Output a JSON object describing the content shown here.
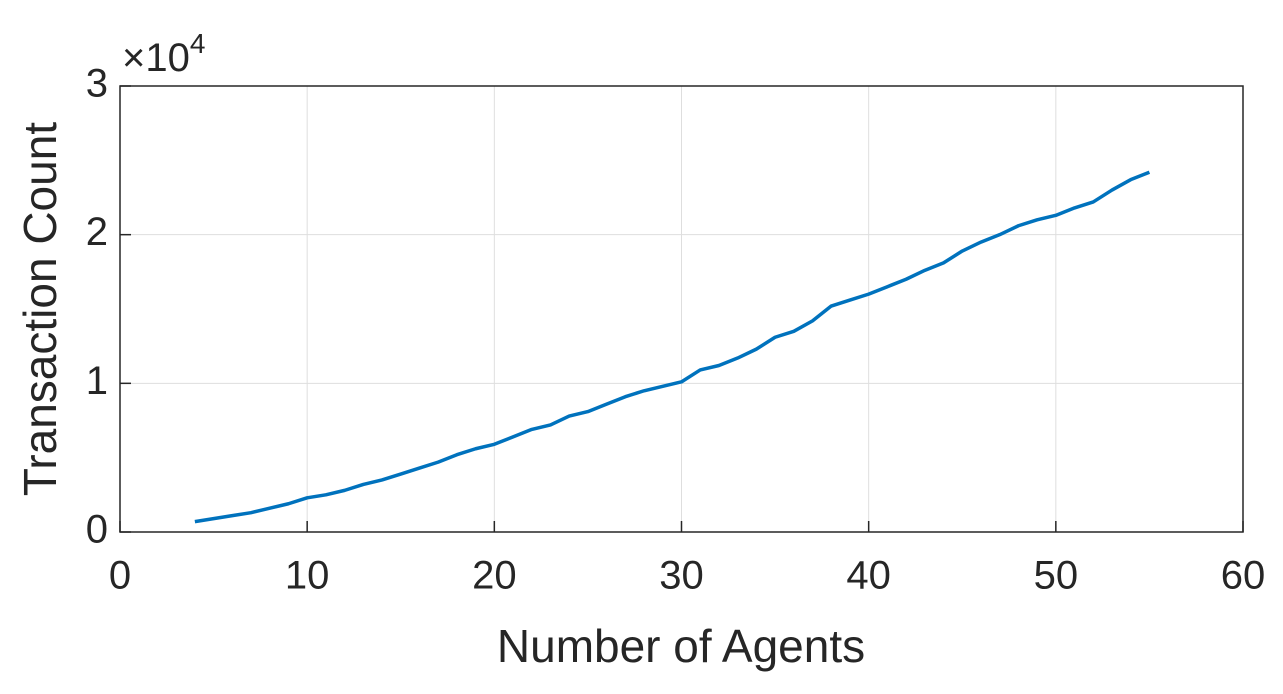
{
  "chart_data": {
    "type": "line",
    "x_label": "Number of Agents",
    "y_label": "Transaction Count",
    "y_scale_label": {
      "base": "×10",
      "exponent": "4"
    },
    "x": [
      4,
      5,
      6,
      7,
      8,
      9,
      10,
      11,
      12,
      13,
      14,
      15,
      16,
      17,
      18,
      19,
      20,
      21,
      22,
      23,
      24,
      25,
      26,
      27,
      28,
      29,
      30,
      31,
      32,
      33,
      34,
      35,
      36,
      37,
      38,
      39,
      40,
      41,
      42,
      43,
      44,
      45,
      46,
      47,
      48,
      49,
      50,
      51,
      52,
      53,
      54,
      55
    ],
    "series": [
      {
        "color": "#0072bd",
        "values": [
          0.07,
          0.09,
          0.11,
          0.13,
          0.16,
          0.19,
          0.23,
          0.25,
          0.28,
          0.32,
          0.35,
          0.39,
          0.43,
          0.47,
          0.52,
          0.56,
          0.59,
          0.64,
          0.69,
          0.72,
          0.78,
          0.81,
          0.86,
          0.91,
          0.95,
          0.98,
          1.01,
          1.09,
          1.12,
          1.17,
          1.23,
          1.31,
          1.35,
          1.42,
          1.52,
          1.56,
          1.6,
          1.65,
          1.7,
          1.76,
          1.81,
          1.89,
          1.95,
          2.0,
          2.06,
          2.1,
          2.13,
          2.18,
          2.22,
          2.3,
          2.37,
          2.42
        ]
      }
    ],
    "xlim": [
      0,
      60
    ],
    "xticks": [
      0,
      10,
      20,
      30,
      40,
      50,
      60
    ],
    "ylim": [
      0,
      3
    ],
    "yticks": [
      0,
      1,
      2,
      3
    ],
    "grid": true
  }
}
